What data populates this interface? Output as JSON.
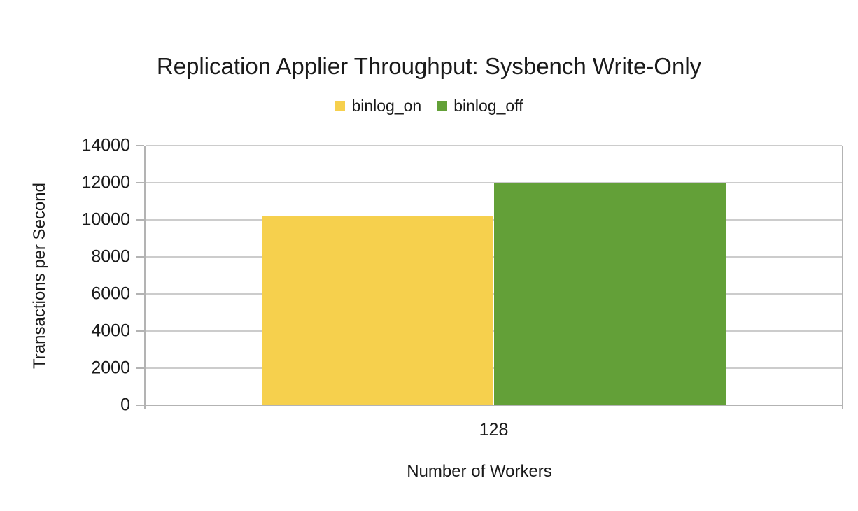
{
  "chart_data": {
    "type": "bar",
    "title": "Replication Applier Throughput: Sysbench Write-Only",
    "xlabel": "Number of Workers",
    "ylabel": "Transactions per Second",
    "categories": [
      "128"
    ],
    "series": [
      {
        "name": "binlog_on",
        "color": "#F6D04D",
        "values": [
          10200
        ]
      },
      {
        "name": "binlog_off",
        "color": "#63A038",
        "values": [
          12000
        ]
      }
    ],
    "ylim": [
      0,
      14000
    ],
    "yticks": [
      0,
      2000,
      4000,
      6000,
      8000,
      10000,
      12000,
      14000
    ],
    "grid": true,
    "legend_position": "top-center"
  },
  "style_colors": {
    "grid": "#CCCCCC",
    "axis": "#B3B3B3",
    "text": "#1A1A1A",
    "background": "#FFFFFF"
  }
}
